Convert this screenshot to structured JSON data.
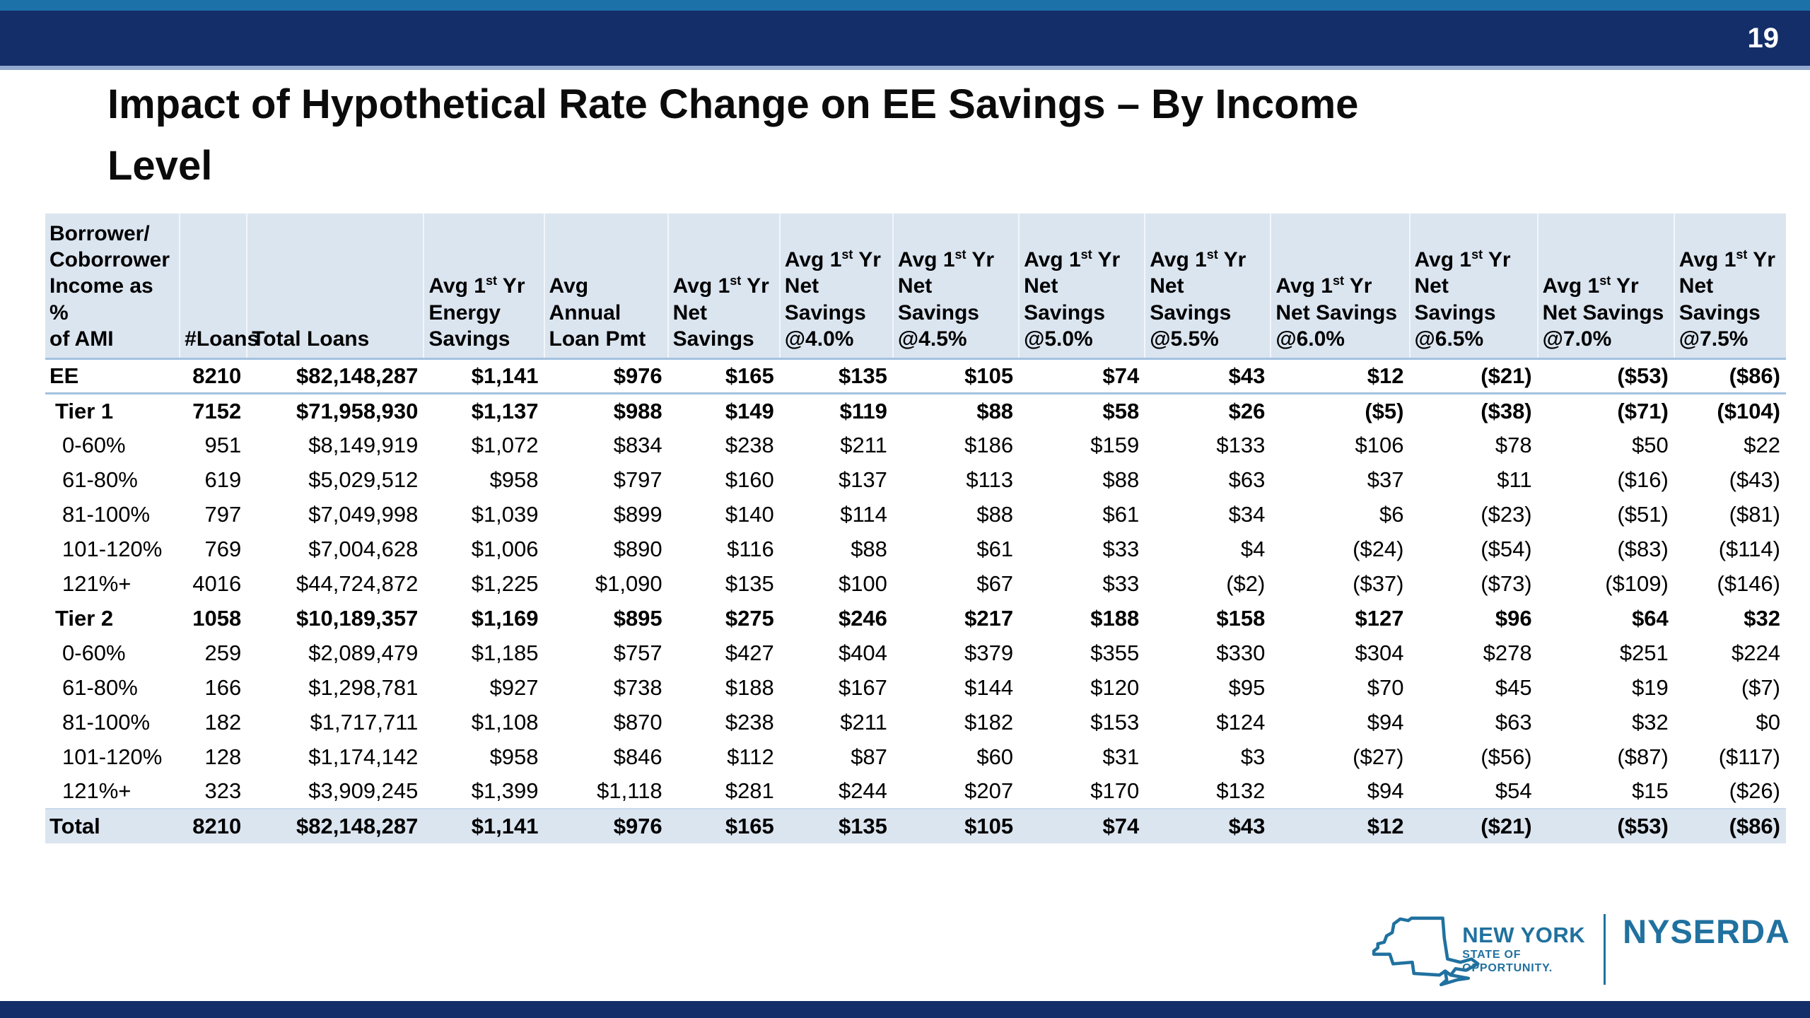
{
  "page": {
    "number": "19"
  },
  "title": "Impact of Hypothetical Rate Change on EE Savings – By Income\nLevel",
  "colors": {
    "top_strip_blue": "#1B71A8",
    "bar_navy": "#132E68",
    "bar_underline": "#93A9CF",
    "table_header_bg": "#DBE5F0",
    "total_row_bg": "#DBE5F0",
    "rule_blue": "#A3C2E0",
    "logo_blue": "#20719F",
    "title_text": "#0B0B0B"
  },
  "table": {
    "columns": [
      {
        "label": "Borrower/\nCoborrower\nIncome as %\nof AMI",
        "align": "left"
      },
      {
        "label": "#Loans",
        "align": "right"
      },
      {
        "label": "Total Loans",
        "align": "left"
      },
      {
        "label": "Avg 1st Yr\nEnergy\nSavings",
        "align": "left"
      },
      {
        "label": "Avg Annual\nLoan Pmt",
        "align": "left"
      },
      {
        "label": "Avg 1st Yr\nNet\nSavings",
        "align": "left"
      },
      {
        "label": "Avg 1st Yr\nNet\nSavings\n@4.0%",
        "align": "left"
      },
      {
        "label": "Avg 1st Yr\nNet Savings\n@4.5%",
        "align": "left"
      },
      {
        "label": "Avg 1st Yr\nNet Savings\n@5.0%",
        "align": "left"
      },
      {
        "label": "Avg 1st Yr\nNet Savings\n@5.5%",
        "align": "left"
      },
      {
        "label": "Avg 1st Yr\nNet Savings\n@6.0%",
        "align": "left"
      },
      {
        "label": "Avg 1st Yr\nNet Savings\n@6.5%",
        "align": "left"
      },
      {
        "label": "Avg 1st Yr\nNet Savings\n@7.0%",
        "align": "left"
      },
      {
        "label": "Avg 1st Yr\nNet\nSavings\n@7.5%",
        "align": "left"
      }
    ],
    "rows": [
      {
        "label": "EE",
        "style": "ee",
        "values": [
          "8210",
          "$82,148,287",
          "$1,141",
          "$976",
          "$165",
          "$135",
          "$105",
          "$74",
          "$43",
          "$12",
          "($21)",
          "($53)",
          "($86)"
        ]
      },
      {
        "label": "Tier 1",
        "style": "tier",
        "values": [
          "7152",
          "$71,958,930",
          "$1,137",
          "$988",
          "$149",
          "$119",
          "$88",
          "$58",
          "$26",
          "($5)",
          "($38)",
          "($71)",
          "($104)"
        ]
      },
      {
        "label": "0-60%",
        "style": "sub",
        "values": [
          "951",
          "$8,149,919",
          "$1,072",
          "$834",
          "$238",
          "$211",
          "$186",
          "$159",
          "$133",
          "$106",
          "$78",
          "$50",
          "$22"
        ]
      },
      {
        "label": "61-80%",
        "style": "sub",
        "values": [
          "619",
          "$5,029,512",
          "$958",
          "$797",
          "$160",
          "$137",
          "$113",
          "$88",
          "$63",
          "$37",
          "$11",
          "($16)",
          "($43)"
        ]
      },
      {
        "label": "81-100%",
        "style": "sub",
        "values": [
          "797",
          "$7,049,998",
          "$1,039",
          "$899",
          "$140",
          "$114",
          "$88",
          "$61",
          "$34",
          "$6",
          "($23)",
          "($51)",
          "($81)"
        ]
      },
      {
        "label": "101-120%",
        "style": "sub",
        "values": [
          "769",
          "$7,004,628",
          "$1,006",
          "$890",
          "$116",
          "$88",
          "$61",
          "$33",
          "$4",
          "($24)",
          "($54)",
          "($83)",
          "($114)"
        ]
      },
      {
        "label": "121%+",
        "style": "sub",
        "values": [
          "4016",
          "$44,724,872",
          "$1,225",
          "$1,090",
          "$135",
          "$100",
          "$67",
          "$33",
          "($2)",
          "($37)",
          "($73)",
          "($109)",
          "($146)"
        ]
      },
      {
        "label": "Tier 2",
        "style": "tier",
        "values": [
          "1058",
          "$10,189,357",
          "$1,169",
          "$895",
          "$275",
          "$246",
          "$217",
          "$188",
          "$158",
          "$127",
          "$96",
          "$64",
          "$32"
        ]
      },
      {
        "label": "0-60%",
        "style": "sub",
        "values": [
          "259",
          "$2,089,479",
          "$1,185",
          "$757",
          "$427",
          "$404",
          "$379",
          "$355",
          "$330",
          "$304",
          "$278",
          "$251",
          "$224"
        ]
      },
      {
        "label": "61-80%",
        "style": "sub",
        "values": [
          "166",
          "$1,298,781",
          "$927",
          "$738",
          "$188",
          "$167",
          "$144",
          "$120",
          "$95",
          "$70",
          "$45",
          "$19",
          "($7)"
        ]
      },
      {
        "label": "81-100%",
        "style": "sub",
        "values": [
          "182",
          "$1,717,711",
          "$1,108",
          "$870",
          "$238",
          "$211",
          "$182",
          "$153",
          "$124",
          "$94",
          "$63",
          "$32",
          "$0"
        ]
      },
      {
        "label": "101-120%",
        "style": "sub",
        "values": [
          "128",
          "$1,174,142",
          "$958",
          "$846",
          "$112",
          "$87",
          "$60",
          "$31",
          "$3",
          "($27)",
          "($56)",
          "($87)",
          "($117)"
        ]
      },
      {
        "label": "121%+",
        "style": "sub",
        "values": [
          "323",
          "$3,909,245",
          "$1,399",
          "$1,118",
          "$281",
          "$244",
          "$207",
          "$170",
          "$132",
          "$94",
          "$54",
          "$15",
          "($26)"
        ]
      },
      {
        "label": "Total",
        "style": "total",
        "values": [
          "8210",
          "$82,148,287",
          "$1,141",
          "$976",
          "$165",
          "$135",
          "$105",
          "$74",
          "$43",
          "$12",
          "($21)",
          "($53)",
          "($86)"
        ]
      }
    ]
  },
  "logo": {
    "line1": "NEW YORK",
    "line2": "STATE OF",
    "line3": "OPPORTUNITY.",
    "brand": "NYSERDA"
  }
}
